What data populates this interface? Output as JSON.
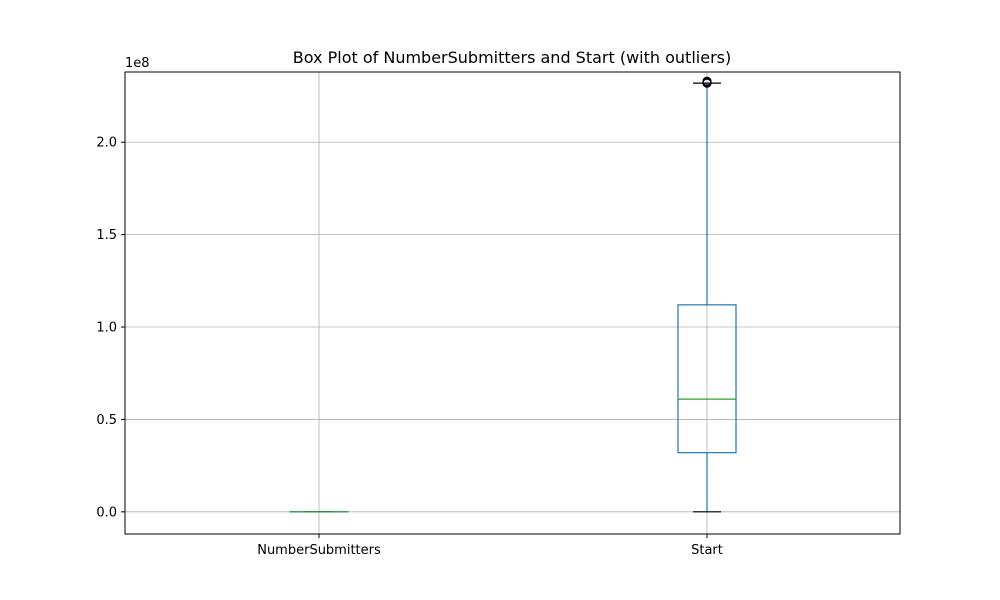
{
  "chart_data": {
    "type": "box",
    "title": "Box Plot of NumberSubmitters and Start (with outliers)",
    "xlabel": "",
    "ylabel": "",
    "y_offset_label": "1e8",
    "categories": [
      "NumberSubmitters",
      "Start"
    ],
    "yticks": [
      0.0,
      0.5,
      1.0,
      1.5,
      2.0
    ],
    "ytick_labels": [
      "0.0",
      "0.5",
      "1.0",
      "1.5",
      "2.0"
    ],
    "ylim": [
      -0.12,
      2.38
    ],
    "grid": true,
    "boxes": [
      {
        "name": "NumberSubmitters",
        "whisker_low": 0.0,
        "q1": 0.0,
        "median": 0.0,
        "q3": 0.0,
        "whisker_high": 0.0,
        "outliers": []
      },
      {
        "name": "Start",
        "whisker_low": 0.0,
        "q1": 0.32,
        "median": 0.61,
        "q3": 1.12,
        "whisker_high": 2.32,
        "outliers": [
          2.32,
          2.325,
          2.33
        ]
      }
    ],
    "colors": {
      "box": "#1f77b4",
      "median": "#2ca02c",
      "whisker": "#1f77b4",
      "cap": "#000000",
      "grid": "#b0b0b0",
      "outlier": "#000000"
    }
  }
}
